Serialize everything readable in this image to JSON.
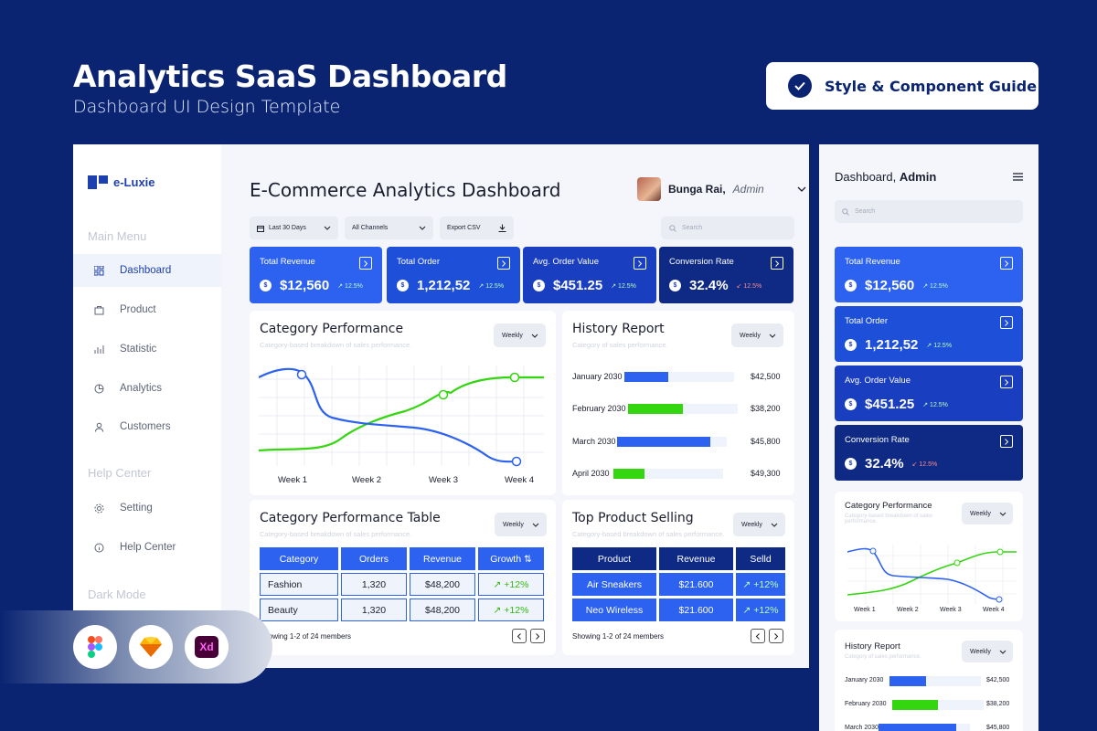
{
  "hero": {
    "title": "Analytics SaaS Dashboard",
    "subtitle": "Dashboard UI Design Template",
    "guide_label": "Style & Component Guide"
  },
  "brand": {
    "name": "e-Luxie"
  },
  "sidebar": {
    "main_menu": "Main Menu",
    "help_center": "Help Center",
    "dark_mode": "Dark Mode",
    "items": [
      {
        "label": "Dashboard",
        "icon": "grid-icon"
      },
      {
        "label": "Product",
        "icon": "bag-icon"
      },
      {
        "label": "Statistic",
        "icon": "bar-chart-icon"
      },
      {
        "label": "Analytics",
        "icon": "pie-icon"
      },
      {
        "label": "Customers",
        "icon": "user-icon"
      }
    ],
    "help_items": [
      {
        "label": "Setting",
        "icon": "gear-icon"
      },
      {
        "label": "Help Center",
        "icon": "info-icon"
      }
    ]
  },
  "header": {
    "title": "E-Commerce Analytics Dashboard",
    "user_name": "Bunga Rai,",
    "user_role": "Admin"
  },
  "filters": {
    "range": "Last 30 Days",
    "channels": "All Channels",
    "export": "Export CSV",
    "search_placeholder": "Search"
  },
  "kpis": [
    {
      "title": "Total Revenue",
      "value": "$12,560",
      "growth": "12.5%",
      "color": "#2d62f0"
    },
    {
      "title": "Total Order",
      "value": "1,212,52",
      "growth": "12.5%",
      "color": "#1e4fd8"
    },
    {
      "title": "Avg. Order Value",
      "value": "$451.25",
      "growth": "12.5%",
      "color": "#1a3ec0"
    },
    {
      "title": "Conversion Rate",
      "value": "32.4%",
      "growth": "12.5%",
      "color": "#0f2a84"
    }
  ],
  "category_performance": {
    "title": "Category Performance",
    "subtitle": "Category-based breakdown of sales performance.",
    "period": "Weekly",
    "weeks": [
      "Week 1",
      "Week 2",
      "Week 3",
      "Week 4"
    ]
  },
  "history": {
    "title": "History Report",
    "subtitle": "Category of sales performance.",
    "period": "Weekly",
    "rows": [
      {
        "month": "January 2030",
        "value": "$42,500",
        "fill": 0.4,
        "color": "#2d62f0"
      },
      {
        "month": "February 2030",
        "value": "$38,200",
        "fill": 0.5,
        "color": "#33d60f"
      },
      {
        "month": "March 2030",
        "value": "$45,800",
        "fill": 0.85,
        "color": "#2d62f0"
      },
      {
        "month": "April 2030",
        "value": "$49,300",
        "fill": 0.28,
        "color": "#33d60f"
      }
    ]
  },
  "cat_table": {
    "title": "Category Performance Table",
    "subtitle": "Category-based breakdown of sales performance.",
    "period": "Weekly",
    "headers": [
      "Category",
      "Orders",
      "Revenue",
      "Growth"
    ],
    "rows": [
      [
        "Fashion",
        "1,320",
        "$48,200",
        "+12%"
      ],
      [
        "Beauty",
        "1,320",
        "$48,200",
        "+12%"
      ]
    ],
    "footer": "Showing 1-2 of 24 members"
  },
  "top_product": {
    "title": "Top Product Selling",
    "subtitle": "Category-based breakdown of sales performance.",
    "period": "Weekly",
    "headers": [
      "Product",
      "Revenue",
      "Selld"
    ],
    "rows": [
      [
        "Air Sneakers",
        "$21.600",
        "+12%"
      ],
      [
        "Neo Wireless",
        "$21.600",
        "+12%"
      ]
    ],
    "footer": "Showing 1-2 of 24 members"
  },
  "mobile": {
    "title_a": "Dashboard,",
    "title_b": "Admin",
    "search_placeholder": "Search"
  }
}
